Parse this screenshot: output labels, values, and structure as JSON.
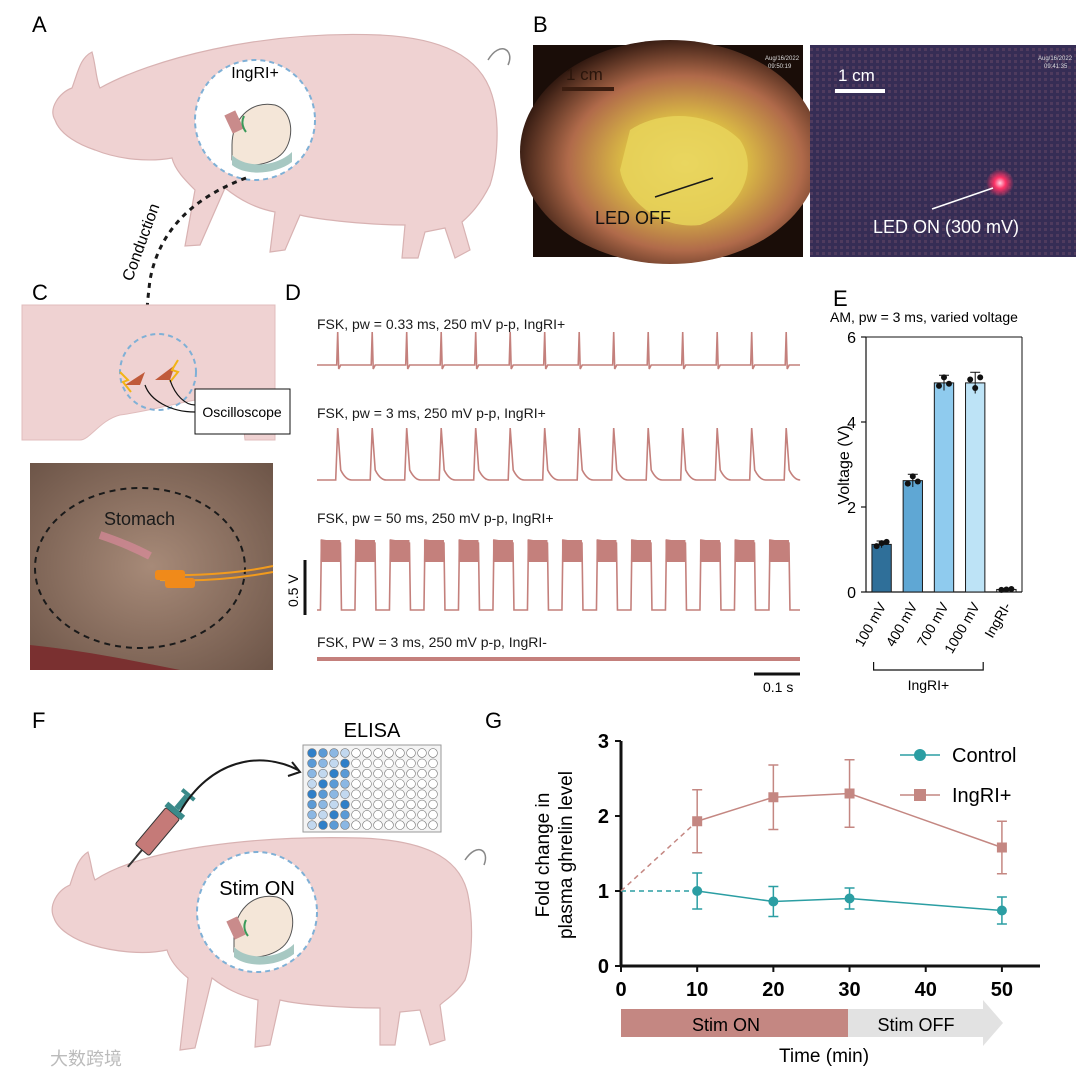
{
  "panel_labels": {
    "A": "A",
    "B": "B",
    "C": "C",
    "D": "D",
    "E": "E",
    "F": "F",
    "G": "G"
  },
  "panelA": {
    "inset_label": "IngRI+",
    "conduction": "Conduction"
  },
  "panelB": {
    "left_scale": "1 cm",
    "left_annot": "LED OFF",
    "left_stamp": "Aug/16/2022\n09:50:19",
    "right_scale": "1 cm",
    "right_annot": "LED ON (300 mV)",
    "right_stamp": "Aug/16/2022\n09:41:35"
  },
  "panelC": {
    "oscilloscope": "Oscilloscope",
    "stomach": "Stomach"
  },
  "panelD": {
    "traces": [
      {
        "label": "FSK, pw = 0.33 ms, 250 mV p-p, IngRI+",
        "pulses": 14,
        "kind": "spike"
      },
      {
        "label": "FSK, pw = 3 ms, 250 mV p-p, IngRI+",
        "pulses": 14,
        "kind": "wide-spike"
      },
      {
        "label": "FSK, pw = 50 ms, 250 mV p-p, IngRI+",
        "pulses": 14,
        "kind": "square"
      },
      {
        "label": "FSK, PW = 3 ms, 250 mV p-p, IngRI-",
        "pulses": 0,
        "kind": "flat"
      }
    ],
    "vscale": "0.5 V",
    "tscale": "0.1 s"
  },
  "panelF": {
    "elisa": "ELISA",
    "stim": "Stim ON"
  },
  "watermark": "大数跨境",
  "chart_data": [
    {
      "id": "E",
      "type": "bar",
      "title": "AM, pw = 3 ms, varied voltage",
      "ylabel": "Voltage (V)",
      "ylim": [
        0,
        6
      ],
      "yticks": [
        0,
        2,
        4,
        6
      ],
      "categories": [
        "100 mV",
        "400 mV",
        "700 mV",
        "1000 mV",
        "IngRI-"
      ],
      "values": [
        1.12,
        2.62,
        4.92,
        4.92,
        0.06
      ],
      "errors": [
        0.08,
        0.15,
        0.18,
        0.25,
        0.02
      ],
      "points": [
        [
          1.08,
          1.15,
          1.18
        ],
        [
          2.55,
          2.72,
          2.6
        ],
        [
          4.85,
          5.05,
          4.9
        ],
        [
          5.0,
          4.8,
          5.05
        ],
        [
          0.05,
          0.06,
          0.07
        ]
      ],
      "colors": [
        "#2f6f99",
        "#5fa7d4",
        "#8fcbee",
        "#bde3f6",
        "#dcdcdc"
      ],
      "group_label": "IngRI+"
    },
    {
      "id": "G",
      "type": "line",
      "ylabel": "Fold change in plasma ghrelin level",
      "xlabel": "Time (min)",
      "xlim": [
        0,
        55
      ],
      "ylim": [
        0,
        3
      ],
      "xticks": [
        0,
        10,
        20,
        30,
        40,
        50
      ],
      "yticks": [
        0,
        1,
        2,
        3
      ],
      "series": [
        {
          "name": "Control",
          "color": "#2b9ea3",
          "marker": "circle",
          "x": [
            10,
            20,
            30,
            50
          ],
          "y": [
            1.0,
            0.86,
            0.9,
            0.74
          ],
          "err": [
            0.24,
            0.2,
            0.14,
            0.18
          ]
        },
        {
          "name": "IngRI+",
          "color": "#c48782",
          "marker": "square",
          "x": [
            10,
            20,
            30,
            50
          ],
          "y": [
            1.93,
            2.25,
            2.3,
            1.58
          ],
          "err": [
            0.42,
            0.43,
            0.45,
            0.35
          ]
        }
      ],
      "baseline": {
        "x": 0,
        "y": 1.0
      },
      "stim_on": "Stim ON",
      "stim_off": "Stim OFF"
    }
  ]
}
